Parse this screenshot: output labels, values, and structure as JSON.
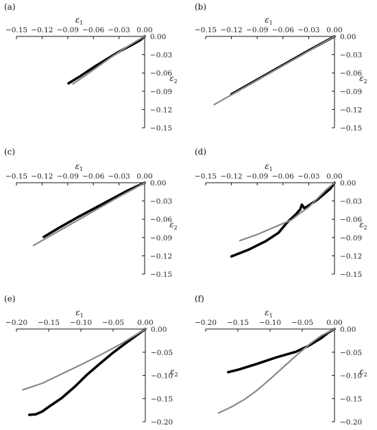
{
  "chart_data": [
    {
      "panel_label": "(a)",
      "type": "line",
      "xlabel": "ε1",
      "ylabel": "ε2",
      "xlim": [
        -0.15,
        0.0
      ],
      "ylim": [
        -0.15,
        0.0
      ],
      "x_ticks": [
        "−0.15",
        "−0.12",
        "−0.09",
        "−0.06",
        "−0.03",
        "0.00"
      ],
      "y_ticks": [
        "0.00",
        "−0.03",
        "−0.06",
        "−0.09",
        "−0.12",
        "−0.15"
      ],
      "series": [
        {
          "color": "#000000",
          "x": [
            -0.089,
            -0.075,
            -0.06,
            -0.045,
            -0.03,
            -0.015,
            -0.005,
            0.0
          ],
          "y": [
            -0.077,
            -0.065,
            -0.051,
            -0.038,
            -0.025,
            -0.014,
            -0.006,
            0.0
          ]
        },
        {
          "color": "#888888",
          "x": [
            -0.084,
            -0.07,
            -0.055,
            -0.04,
            -0.025,
            -0.01,
            0.0
          ],
          "y": [
            -0.078,
            -0.065,
            -0.05,
            -0.035,
            -0.021,
            -0.008,
            0.0
          ]
        }
      ]
    },
    {
      "panel_label": "(b)",
      "type": "line",
      "xlabel": "ε1",
      "ylabel": "ε2",
      "xlim": [
        -0.15,
        0.0
      ],
      "ylim": [
        -0.15,
        0.0
      ],
      "x_ticks": [
        "−0.15",
        "−0.12",
        "−0.09",
        "−0.06",
        "−0.03",
        "0.00"
      ],
      "y_ticks": [
        "0.00",
        "−0.03",
        "−0.06",
        "−0.09",
        "−0.12",
        "−0.15"
      ],
      "series": [
        {
          "color": "#000000",
          "x": [
            -0.12,
            -0.09,
            -0.06,
            -0.03,
            0.0
          ],
          "y": [
            -0.095,
            -0.071,
            -0.047,
            -0.023,
            0.0
          ]
        },
        {
          "color": "#888888",
          "x": [
            -0.14,
            -0.11,
            -0.08,
            -0.05,
            -0.02,
            0.0
          ],
          "y": [
            -0.112,
            -0.088,
            -0.064,
            -0.04,
            -0.016,
            0.0
          ]
        }
      ]
    },
    {
      "panel_label": "(c)",
      "type": "line",
      "xlabel": "ε1",
      "ylabel": "ε2",
      "xlim": [
        -0.15,
        0.0
      ],
      "ylim": [
        -0.15,
        0.0
      ],
      "x_ticks": [
        "−0.15",
        "−0.12",
        "−0.09",
        "−0.06",
        "−0.03",
        "0.00"
      ],
      "y_ticks": [
        "0.00",
        "−0.03",
        "−0.06",
        "−0.09",
        "−0.12",
        "−0.15"
      ],
      "series": [
        {
          "color": "#000000",
          "x": [
            -0.118,
            -0.1,
            -0.08,
            -0.06,
            -0.04,
            -0.02,
            0.0
          ],
          "y": [
            -0.089,
            -0.074,
            -0.058,
            -0.043,
            -0.028,
            -0.013,
            0.0
          ]
        },
        {
          "color": "#888888",
          "x": [
            -0.13,
            -0.11,
            -0.09,
            -0.07,
            -0.05,
            -0.03,
            -0.01,
            0.0
          ],
          "y": [
            -0.103,
            -0.087,
            -0.071,
            -0.055,
            -0.039,
            -0.023,
            -0.008,
            0.0
          ]
        }
      ]
    },
    {
      "panel_label": "(d)",
      "type": "line",
      "xlabel": "ε1",
      "ylabel": "ε2",
      "xlim": [
        -0.15,
        0.0
      ],
      "ylim": [
        -0.15,
        0.0
      ],
      "x_ticks": [
        "−0.15",
        "−0.12",
        "−0.09",
        "−0.06",
        "−0.03",
        "0.00"
      ],
      "y_ticks": [
        "0.00",
        "−0.03",
        "−0.06",
        "−0.09",
        "−0.12",
        "−0.15"
      ],
      "series": [
        {
          "color": "#000000",
          "x": [
            -0.12,
            -0.1,
            -0.08,
            -0.065,
            -0.055,
            -0.045,
            -0.04,
            -0.038,
            -0.035,
            -0.02,
            -0.005,
            0.0
          ],
          "y": [
            -0.121,
            -0.11,
            -0.096,
            -0.082,
            -0.065,
            -0.052,
            -0.044,
            -0.036,
            -0.042,
            -0.028,
            -0.01,
            0.0
          ]
        },
        {
          "color": "#888888",
          "x": [
            -0.11,
            -0.09,
            -0.07,
            -0.05,
            -0.04,
            -0.03,
            -0.02,
            -0.01,
            0.0
          ],
          "y": [
            -0.095,
            -0.085,
            -0.073,
            -0.061,
            -0.05,
            -0.04,
            -0.026,
            -0.012,
            0.0
          ]
        }
      ]
    },
    {
      "panel_label": "(e)",
      "type": "line",
      "xlabel": "ε1",
      "ylabel": "ε2",
      "xlim": [
        -0.2,
        0.0
      ],
      "ylim": [
        -0.2,
        0.0
      ],
      "x_ticks": [
        "−0.20",
        "−0.15",
        "−0.10",
        "−0.05",
        "0.00"
      ],
      "y_ticks": [
        "0.00",
        "−0.05",
        "−0.10",
        "−0.15",
        "−0.20"
      ],
      "series": [
        {
          "color": "#000000",
          "x": [
            -0.18,
            -0.17,
            -0.16,
            -0.15,
            -0.13,
            -0.11,
            -0.09,
            -0.07,
            -0.05,
            -0.03,
            -0.01,
            0.0
          ],
          "y": [
            -0.185,
            -0.184,
            -0.178,
            -0.168,
            -0.149,
            -0.125,
            -0.098,
            -0.074,
            -0.051,
            -0.03,
            -0.01,
            0.0
          ]
        },
        {
          "color": "#888888",
          "x": [
            -0.19,
            -0.16,
            -0.13,
            -0.1,
            -0.07,
            -0.04,
            -0.02,
            0.0
          ],
          "y": [
            -0.131,
            -0.117,
            -0.097,
            -0.077,
            -0.056,
            -0.034,
            -0.017,
            0.0
          ]
        }
      ]
    },
    {
      "panel_label": "(f)",
      "type": "line",
      "xlabel": "ε1",
      "ylabel": "ε2",
      "xlim": [
        -0.2,
        0.0
      ],
      "ylim": [
        -0.2,
        0.0
      ],
      "x_ticks": [
        "−0.20",
        "−0.15",
        "−0.10",
        "−0.05",
        "0.00"
      ],
      "y_ticks": [
        "0.00",
        "−0.05",
        "−0.10",
        "−0.15",
        "−0.20"
      ],
      "series": [
        {
          "color": "#000000",
          "x": [
            -0.165,
            -0.15,
            -0.12,
            -0.09,
            -0.06,
            -0.04,
            -0.02,
            -0.01,
            0.0
          ],
          "y": [
            -0.093,
            -0.088,
            -0.075,
            -0.061,
            -0.049,
            -0.036,
            -0.019,
            -0.008,
            0.0
          ]
        },
        {
          "color": "#888888",
          "x": [
            -0.18,
            -0.16,
            -0.14,
            -0.12,
            -0.1,
            -0.08,
            -0.06,
            -0.04,
            -0.02,
            0.0
          ],
          "y": [
            -0.181,
            -0.168,
            -0.152,
            -0.132,
            -0.108,
            -0.083,
            -0.058,
            -0.034,
            -0.014,
            0.0
          ]
        }
      ]
    }
  ]
}
